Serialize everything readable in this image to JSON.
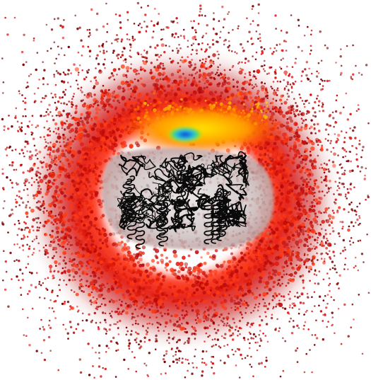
{
  "figure": {
    "kind": "molecular density visualization",
    "colors": {
      "background": "#ffffff",
      "dot_dark": "#7a0000",
      "dot_red": "#d81010",
      "cloud_red": "#e01a0a",
      "cloud_orange": "#ff6a00",
      "cloud_yellow": "#ffd800",
      "hotspot_green": "#6ee040",
      "hotspot_cyan": "#18b8e8",
      "hotspot_blue": "#1030c8",
      "core_gray": "#cfc9c9",
      "protein_line": "#0a0a0a"
    },
    "icons": {
      "point_cloud": "scattered-dots",
      "density_shell": "heat-map-ring",
      "protein": "ribbon-cartoon"
    }
  }
}
